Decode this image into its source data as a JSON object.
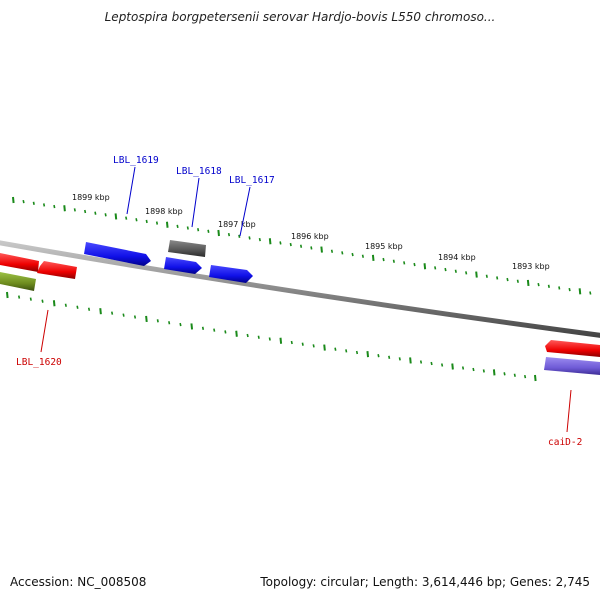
{
  "title": "Leptospira borgpetersenii serovar Hardjo-bovis L550 chromoso...",
  "footer": {
    "accession": "Accession: NC_008508",
    "summary": "Topology: circular; Length: 3,614,446 bp; Genes: 2,745"
  },
  "scale_ticks": [
    {
      "label": "1899 kbp",
      "kbp": 1899
    },
    {
      "label": "1898 kbp",
      "kbp": 1898
    },
    {
      "label": "1897 kbp",
      "kbp": 1897
    },
    {
      "label": "1896 kbp",
      "kbp": 1896
    },
    {
      "label": "1895 kbp",
      "kbp": 1895
    },
    {
      "label": "1894 kbp",
      "kbp": 1894
    },
    {
      "label": "1893 kbp",
      "kbp": 1893
    }
  ],
  "genes": [
    {
      "id": "LBL_1619",
      "label": "LBL_1619",
      "color": "#0000cc"
    },
    {
      "id": "LBL_1618",
      "label": "LBL_1618",
      "color": "#0000cc"
    },
    {
      "id": "LBL_1617",
      "label": "LBL_1617",
      "color": "#0000cc"
    },
    {
      "id": "LBL_1620",
      "label": "LBL_1620",
      "color": "#cc0000"
    },
    {
      "id": "caiD-2",
      "label": "caiD-2",
      "color": "#cc0000"
    }
  ],
  "colors": {
    "backbone": "#808080",
    "ticks": "#1a8a1a",
    "forward_feature": "#1a1aee",
    "reverse_feature": "#ee1111",
    "other_feature": "#555555",
    "rna_feature": "#6e8c1e",
    "reverse_gene_lilac": "#6f5bd6"
  }
}
